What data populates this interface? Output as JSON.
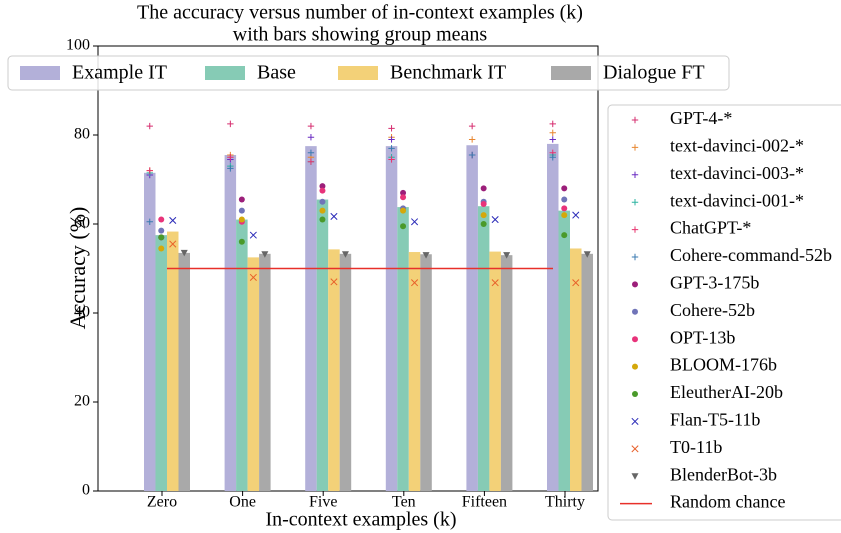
{
  "chart_data": {
    "type": "bar",
    "title": [
      "The accuracy versus number of in-context examples (k)",
      "with bars showing group means"
    ],
    "x_label": "In-context examples (k)",
    "y_label": "Accuracy (%)",
    "categories": [
      "Zero",
      "One",
      "Five",
      "Ten",
      "Fifteen",
      "Thirty"
    ],
    "ylim": [
      0,
      100
    ],
    "yticks": [
      0,
      20,
      40,
      60,
      80,
      100
    ],
    "series": [
      {
        "name": "Example IT",
        "color": "#b3b0d9",
        "values": [
          71.5,
          75.5,
          77.5,
          77.5,
          77.7,
          78
        ],
        "models": [
          {
            "name": "GPT-4-*",
            "color": "#d62d6f",
            "marker": "+",
            "values": [
              82,
              82.5,
              82,
              81.5,
              82,
              82.5
            ]
          },
          {
            "name": "text-davinci-002-*",
            "color": "#e8862f",
            "marker": "+",
            "values": [
              72,
              75.5,
              75,
              79.5,
              79,
              80.5
            ]
          },
          {
            "name": "text-davinci-003-*",
            "color": "#6a2bc2",
            "marker": "+",
            "values": [
              71,
              74.5,
              79.5,
              79,
              75.5,
              79
            ]
          },
          {
            "name": "text-davinci-001-*",
            "color": "#2bb3a0",
            "marker": "+",
            "values": [
              71.5,
              73,
              74,
              75,
              75.5,
              75.5
            ]
          },
          {
            "name": "ChatGPT-*",
            "color": "#e8336e",
            "marker": "+",
            "values": [
              72,
              75,
              74,
              74.5,
              75.5,
              76
            ]
          },
          {
            "name": "Cohere-command-52b",
            "color": "#3a7ab0",
            "marker": "+",
            "values": [
              60.5,
              72.5,
              76,
              77,
              75.5,
              75
            ]
          }
        ]
      },
      {
        "name": "Base",
        "color": "#86cbb5",
        "values": [
          57.5,
          61,
          65.5,
          63.8,
          64,
          63
        ],
        "models": [
          {
            "name": "GPT-3-175b",
            "color": "#9c1f7a",
            "marker": "o",
            "values": [
              57,
              65.5,
              68.5,
              67,
              68,
              68
            ]
          },
          {
            "name": "Cohere-52b",
            "color": "#7074b8",
            "marker": "o",
            "values": [
              58.5,
              63,
              65,
              63.5,
              65,
              65.5
            ]
          },
          {
            "name": "OPT-13b",
            "color": "#e8337a",
            "marker": "o",
            "values": [
              61,
              60.5,
              67.5,
              66,
              64.5,
              63.5
            ]
          },
          {
            "name": "BLOOM-176b",
            "color": "#d4a80a",
            "marker": "o",
            "values": [
              54.5,
              61,
              63,
              63,
              62,
              62
            ]
          },
          {
            "name": "EleutherAI-20b",
            "color": "#4a9a2a",
            "marker": "o",
            "values": [
              57,
              56,
              61,
              59.5,
              60,
              57.5
            ]
          }
        ]
      },
      {
        "name": "Benchmark IT",
        "color": "#f3d178",
        "values": [
          58.3,
          52.5,
          54.3,
          53.7,
          53.8,
          54.5
        ],
        "models": [
          {
            "name": "Flan-T5-11b",
            "color": "#2a2ab8",
            "marker": "x",
            "values": [
              60.8,
              57.5,
              61.7,
              60.5,
              61,
              62
            ]
          },
          {
            "name": "T0-11b",
            "color": "#e8602a",
            "marker": "x",
            "values": [
              55.5,
              48,
              47,
              46.8,
              46.8,
              46.8
            ]
          }
        ]
      },
      {
        "name": "Dialogue FT",
        "color": "#a9a9a9",
        "values": [
          53.5,
          53.3,
          53.3,
          53.2,
          53,
          53.3
        ],
        "models": [
          {
            "name": "BlenderBot-3b",
            "color": "#666666",
            "marker": "v",
            "values": [
              53.5,
              53.2,
              53.2,
              53,
              53,
              53.2
            ]
          }
        ]
      }
    ],
    "reference_line": {
      "name": "Random chance",
      "value": 50,
      "color": "#e8302a"
    }
  }
}
